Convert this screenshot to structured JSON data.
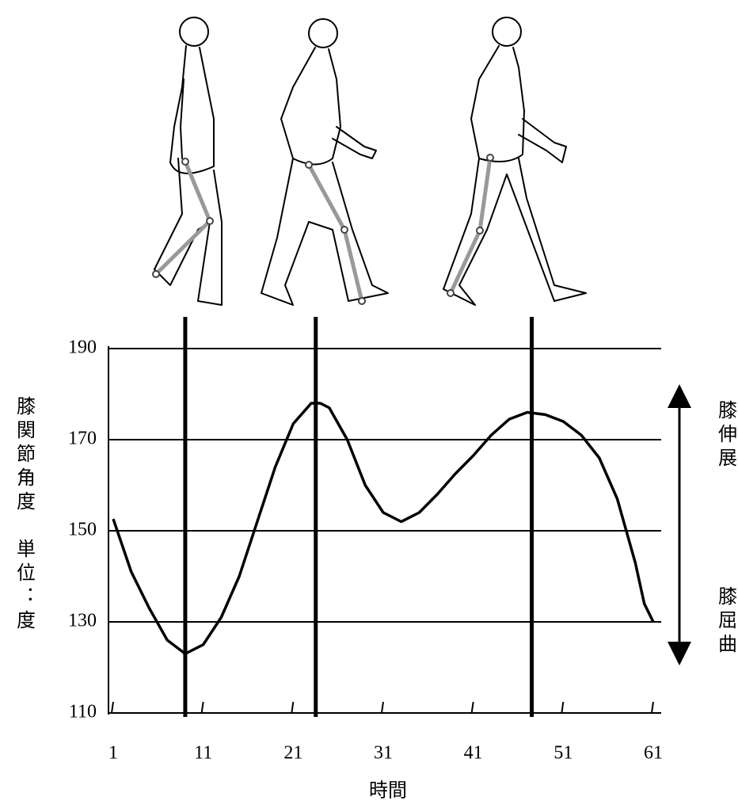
{
  "chart_data": {
    "type": "line",
    "y_label": "膝関節角度　単位：度",
    "x_label": "時間",
    "extension_label": "膝伸展",
    "flexion_label": "膝屈曲",
    "x": [
      1,
      3,
      5,
      7,
      9,
      11,
      13,
      15,
      17,
      19,
      21,
      23,
      24,
      25,
      27,
      29,
      31,
      33,
      35,
      37,
      39,
      41,
      43,
      45,
      47,
      49,
      51,
      53,
      55,
      57,
      59,
      60,
      61
    ],
    "values": [
      152.6,
      141,
      133,
      126,
      123,
      125,
      131,
      140,
      152,
      164,
      173.5,
      178,
      178,
      177,
      170,
      160,
      154,
      152,
      154,
      158,
      162.5,
      166.5,
      171,
      174.5,
      176,
      175.5,
      174,
      171,
      166,
      157,
      143,
      134,
      130
    ],
    "color": "#000000",
    "markers": [
      9,
      23.5,
      47.5
    ],
    "xlim": [
      1,
      61
    ],
    "xticks": [
      1,
      11,
      21,
      31,
      41,
      51,
      61
    ],
    "ylim": [
      110,
      190
    ],
    "yticks": [
      110,
      130,
      150,
      170,
      190
    ],
    "grid": true
  }
}
